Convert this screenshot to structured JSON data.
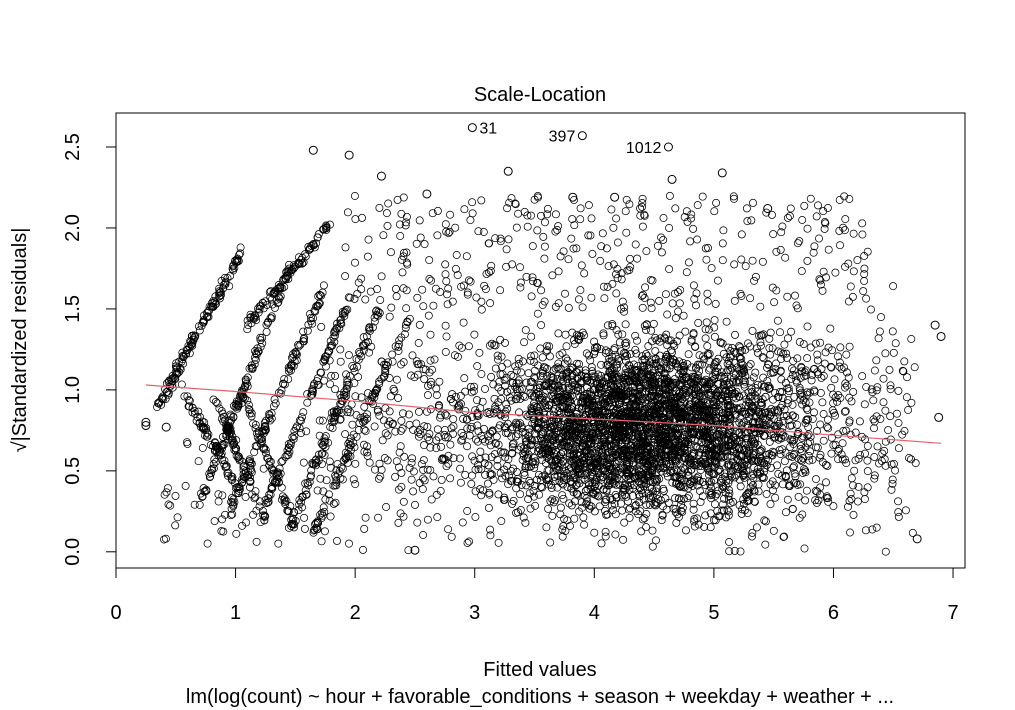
{
  "chart_data": {
    "type": "scatter",
    "title": "Scale-Location",
    "xlabel": "Fitted values",
    "subtitle": "lm(log(count) ~ hour + favorable_conditions + season + weekday + weather +  ...",
    "ylabel": "√|Standardized residuals|",
    "xlim": [
      0,
      7.1
    ],
    "ylim": [
      -0.1,
      2.71
    ],
    "xticks": [
      "0",
      "1",
      "2",
      "3",
      "4",
      "5",
      "6",
      "7"
    ],
    "yticks": [
      "0.0",
      "0.5",
      "1.0",
      "1.5",
      "2.0",
      "2.5"
    ],
    "grid": false,
    "colors": {
      "points": "#000000",
      "smoother": "#e5636e"
    },
    "labeled_points": [
      {
        "label": "31",
        "x": 2.98,
        "y": 2.62
      },
      {
        "label": "397",
        "x": 3.9,
        "y": 2.57
      },
      {
        "label": "1012",
        "x": 4.62,
        "y": 2.5
      }
    ],
    "highlight_points": [
      {
        "x": 1.65,
        "y": 2.48
      },
      {
        "x": 1.95,
        "y": 2.45
      },
      {
        "x": 3.28,
        "y": 2.35
      },
      {
        "x": 5.07,
        "y": 2.34
      },
      {
        "x": 2.22,
        "y": 2.32
      },
      {
        "x": 4.65,
        "y": 2.3
      },
      {
        "x": 2.6,
        "y": 2.21
      },
      {
        "x": 3.82,
        "y": 2.19
      },
      {
        "x": 4.17,
        "y": 2.19
      },
      {
        "x": 5.45,
        "y": 2.12
      },
      {
        "x": 0.25,
        "y": 0.8
      },
      {
        "x": 0.25,
        "y": 0.78
      },
      {
        "x": 0.42,
        "y": 0.77
      },
      {
        "x": 6.7,
        "y": 0.08
      },
      {
        "x": 2.5,
        "y": 0.01
      },
      {
        "x": 6.9,
        "y": 1.33
      },
      {
        "x": 6.85,
        "y": 1.4
      },
      {
        "x": 6.88,
        "y": 0.83
      }
    ],
    "smoother": {
      "x": [
        0.25,
        1.0,
        2.0,
        3.0,
        4.0,
        5.0,
        6.0,
        6.9
      ],
      "y": [
        1.03,
        0.99,
        0.93,
        0.86,
        0.82,
        0.78,
        0.72,
        0.67
      ]
    }
  }
}
